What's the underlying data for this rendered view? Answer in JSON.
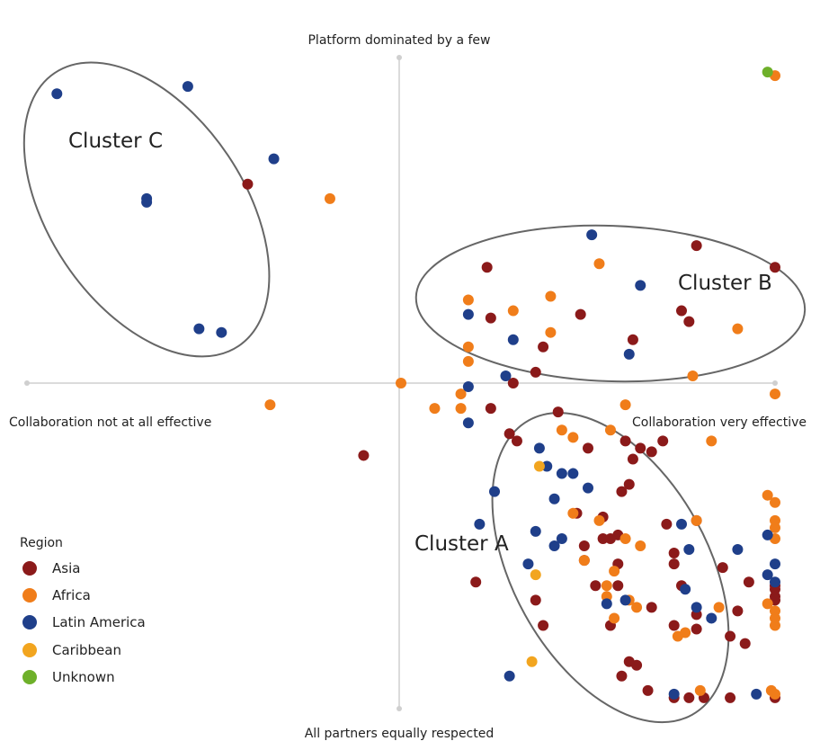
{
  "chart_data": {
    "type": "scatter",
    "axes": {
      "top": "Platform dominated by a few",
      "bottom": "All partners equally respected",
      "left": "Collaboration not at all effective",
      "right": "Collaboration very effective"
    },
    "xlim": [
      -10,
      10
    ],
    "ylim": [
      -9,
      9
    ],
    "grid": false,
    "legend": {
      "title": "Region",
      "placement": "bottom-left",
      "items": [
        {
          "name": "Asia",
          "color": "#8b1a1a"
        },
        {
          "name": "Africa",
          "color": "#f07d1a"
        },
        {
          "name": "Latin America",
          "color": "#1f3f8a"
        },
        {
          "name": "Caribbean",
          "color": "#f2a51f"
        },
        {
          "name": "Unknown",
          "color": "#6eb02a"
        }
      ]
    },
    "clusters": [
      {
        "label": "Cluster C",
        "cx": -6.8,
        "cy": 4.8,
        "rx": 4.4,
        "ry": 2.7,
        "rotation_deg": 56
      },
      {
        "label": "Cluster B",
        "cx": 5.6,
        "cy": 2.2,
        "rx": 5.2,
        "ry": 2.15,
        "rotation_deg": 2
      },
      {
        "label": "Cluster A",
        "cx": 5.6,
        "cy": -5.1,
        "rx": 4.5,
        "ry": 2.7,
        "rotation_deg": 61
      }
    ],
    "series": [
      {
        "name": "Asia",
        "color": "#8b1a1a",
        "points": [
          [
            -4.1,
            5.5
          ],
          [
            2.3,
            3.2
          ],
          [
            7.9,
            3.8
          ],
          [
            10,
            3.2
          ],
          [
            2.4,
            1.8
          ],
          [
            4.8,
            1.9
          ],
          [
            7.5,
            2.0
          ],
          [
            7.7,
            1.7
          ],
          [
            3.8,
            1.0
          ],
          [
            6.2,
            1.2
          ],
          [
            3.6,
            0.3
          ],
          [
            3.0,
            0.0
          ],
          [
            -1.0,
            -2.0
          ],
          [
            4.2,
            -0.8
          ],
          [
            2.4,
            -0.7
          ],
          [
            2.9,
            -1.4
          ],
          [
            3.1,
            -1.6
          ],
          [
            5.0,
            -1.8
          ],
          [
            6.0,
            -1.6
          ],
          [
            6.4,
            -1.8
          ],
          [
            6.2,
            -2.1
          ],
          [
            6.7,
            -1.9
          ],
          [
            7.0,
            -1.6
          ],
          [
            6.1,
            -2.8
          ],
          [
            5.9,
            -3.0
          ],
          [
            4.7,
            -3.6
          ],
          [
            5.4,
            -3.7
          ],
          [
            7.1,
            -3.9
          ],
          [
            7.9,
            -3.8
          ],
          [
            5.8,
            -4.2
          ],
          [
            5.4,
            -4.3
          ],
          [
            5.6,
            -4.3
          ],
          [
            4.9,
            -4.5
          ],
          [
            4.9,
            -4.9
          ],
          [
            7.3,
            -4.7
          ],
          [
            5.8,
            -5.0
          ],
          [
            7.3,
            -5.0
          ],
          [
            8.6,
            -5.1
          ],
          [
            5.2,
            -5.6
          ],
          [
            7.5,
            -5.6
          ],
          [
            9.3,
            -5.5
          ],
          [
            10,
            -5.6
          ],
          [
            10,
            -5.7
          ],
          [
            10,
            -5.9
          ],
          [
            10,
            -6.0
          ],
          [
            2.0,
            -5.5
          ],
          [
            3.6,
            -6.0
          ],
          [
            5.8,
            -5.6
          ],
          [
            6.7,
            -6.2
          ],
          [
            7.9,
            -6.4
          ],
          [
            9.0,
            -6.3
          ],
          [
            3.8,
            -6.7
          ],
          [
            5.6,
            -6.7
          ],
          [
            7.3,
            -6.7
          ],
          [
            7.9,
            -6.8
          ],
          [
            8.8,
            -7.0
          ],
          [
            9.2,
            -7.2
          ],
          [
            6.1,
            -7.7
          ],
          [
            6.3,
            -7.8
          ],
          [
            5.9,
            -8.1
          ],
          [
            6.6,
            -8.5
          ],
          [
            7.3,
            -8.7
          ],
          [
            7.7,
            -8.7
          ],
          [
            8.1,
            -8.7
          ],
          [
            8.8,
            -8.7
          ],
          [
            10,
            -8.7
          ]
        ]
      },
      {
        "name": "Africa",
        "color": "#f07d1a",
        "points": [
          [
            10,
            8.5
          ],
          [
            -1.9,
            5.1
          ],
          [
            5.3,
            3.3
          ],
          [
            4.0,
            2.4
          ],
          [
            1.8,
            2.3
          ],
          [
            3.0,
            2.0
          ],
          [
            9.0,
            1.5
          ],
          [
            4.0,
            1.4
          ],
          [
            1.8,
            1.0
          ],
          [
            1.8,
            0.6
          ],
          [
            7.8,
            0.2
          ],
          [
            10,
            -0.3
          ],
          [
            0.0,
            0.0
          ],
          [
            1.6,
            -0.3
          ],
          [
            -3.5,
            -0.6
          ],
          [
            0.9,
            -0.7
          ],
          [
            1.6,
            -0.7
          ],
          [
            6.0,
            -0.6
          ],
          [
            5.6,
            -1.3
          ],
          [
            8.3,
            -1.6
          ],
          [
            4.3,
            -1.3
          ],
          [
            4.6,
            -1.5
          ],
          [
            9.8,
            -3.1
          ],
          [
            10,
            -3.3
          ],
          [
            4.6,
            -3.6
          ],
          [
            10,
            -3.8
          ],
          [
            10,
            -4.0
          ],
          [
            10,
            -4.3
          ],
          [
            5.3,
            -3.8
          ],
          [
            6.0,
            -4.3
          ],
          [
            7.9,
            -3.8
          ],
          [
            6.4,
            -4.5
          ],
          [
            4.9,
            -4.9
          ],
          [
            5.7,
            -5.2
          ],
          [
            5.5,
            -5.6
          ],
          [
            5.5,
            -5.9
          ],
          [
            9.8,
            -6.1
          ],
          [
            10,
            -6.3
          ],
          [
            10,
            -6.5
          ],
          [
            10,
            -6.7
          ],
          [
            6.1,
            -6.0
          ],
          [
            6.3,
            -6.2
          ],
          [
            5.7,
            -6.5
          ],
          [
            8.5,
            -6.2
          ],
          [
            7.6,
            -6.9
          ],
          [
            7.4,
            -7.0
          ],
          [
            9.9,
            -8.5
          ],
          [
            10,
            -8.6
          ],
          [
            8.0,
            -8.5
          ]
        ]
      },
      {
        "name": "Latin America",
        "color": "#1f3f8a",
        "points": [
          [
            -9.2,
            8.0
          ],
          [
            -5.7,
            8.2
          ],
          [
            -3.4,
            6.2
          ],
          [
            -6.8,
            5.1
          ],
          [
            -6.8,
            5.0
          ],
          [
            -5.4,
            1.5
          ],
          [
            -4.8,
            1.4
          ],
          [
            5.1,
            4.1
          ],
          [
            6.4,
            2.7
          ],
          [
            1.8,
            1.9
          ],
          [
            3.0,
            1.2
          ],
          [
            6.1,
            0.8
          ],
          [
            2.8,
            0.2
          ],
          [
            1.8,
            -0.1
          ],
          [
            1.8,
            -1.1
          ],
          [
            3.7,
            -1.8
          ],
          [
            3.9,
            -2.3
          ],
          [
            4.3,
            -2.5
          ],
          [
            4.6,
            -2.5
          ],
          [
            5.0,
            -2.9
          ],
          [
            2.5,
            -3.0
          ],
          [
            4.1,
            -3.2
          ],
          [
            2.1,
            -3.9
          ],
          [
            3.6,
            -4.1
          ],
          [
            4.3,
            -4.3
          ],
          [
            4.1,
            -4.5
          ],
          [
            7.5,
            -3.9
          ],
          [
            9.8,
            -4.2
          ],
          [
            3.4,
            -5.0
          ],
          [
            7.7,
            -4.6
          ],
          [
            9.0,
            -4.6
          ],
          [
            10,
            -5.0
          ],
          [
            9.8,
            -5.3
          ],
          [
            10,
            -5.5
          ],
          [
            6.0,
            -6.0
          ],
          [
            7.9,
            -6.2
          ],
          [
            8.3,
            -6.5
          ],
          [
            2.9,
            -8.1
          ],
          [
            7.3,
            -8.6
          ],
          [
            9.5,
            -8.6
          ],
          [
            7.6,
            -5.7
          ],
          [
            5.5,
            -6.1
          ]
        ]
      },
      {
        "name": "Caribbean",
        "color": "#f2a51f",
        "points": [
          [
            3.7,
            -2.3
          ],
          [
            3.6,
            -5.3
          ],
          [
            3.5,
            -7.7
          ]
        ]
      },
      {
        "name": "Unknown",
        "color": "#6eb02a",
        "points": [
          [
            9.8,
            8.6
          ]
        ]
      }
    ]
  }
}
